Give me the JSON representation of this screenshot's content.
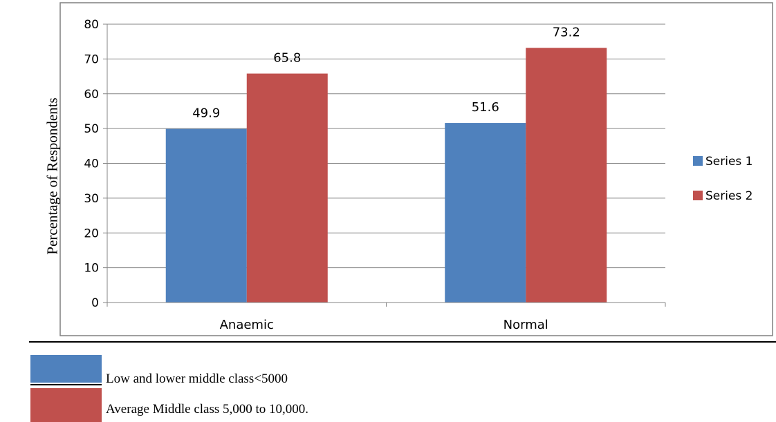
{
  "chart_data": {
    "type": "bar",
    "title": "",
    "xlabel": "",
    "ylabel": "Percentage of Respondents",
    "categories": [
      "Anaemic",
      "Normal"
    ],
    "series": [
      {
        "name": "Series 1",
        "values": [
          49.9,
          51.6
        ],
        "color": "#4F81BD"
      },
      {
        "name": "Series 2",
        "values": [
          65.8,
          73.2
        ],
        "color": "#C0504D"
      }
    ],
    "ylim": [
      0,
      80
    ],
    "yticks": [
      "0",
      "10",
      "20",
      "30",
      "40",
      "50",
      "60",
      "70",
      "80"
    ],
    "data_labels": [
      "49.9",
      "51.6",
      "65.8",
      "73.2"
    ],
    "grid": true,
    "legend_position": "right"
  },
  "caption": {
    "items": [
      {
        "color": "#4F81BD",
        "label": "Low and lower middle class<5000"
      },
      {
        "color": "#C0504D",
        "label": "Average Middle class 5,000 to 10,000."
      }
    ]
  }
}
